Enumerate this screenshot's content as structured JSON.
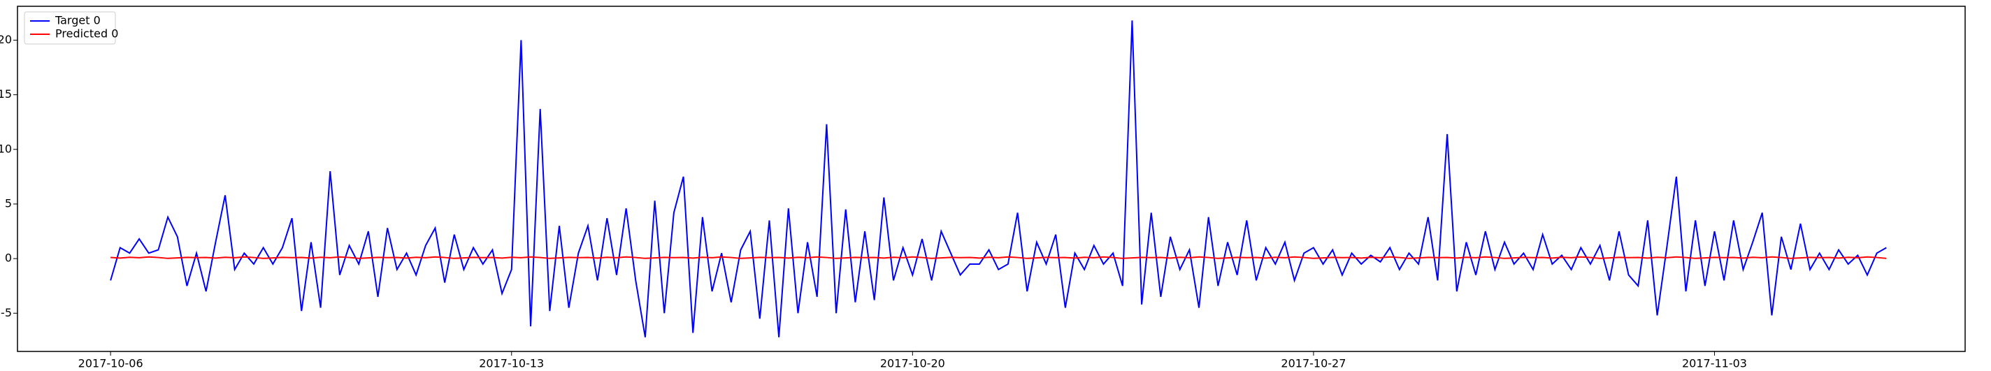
{
  "chart_data": {
    "type": "line",
    "x": [
      0,
      4,
      8,
      12,
      16,
      20,
      24,
      28,
      32,
      36,
      40,
      44,
      48,
      52,
      56,
      60,
      64,
      68,
      72,
      76,
      80,
      84,
      88,
      92,
      96,
      100,
      104,
      108,
      112,
      116,
      120,
      124,
      128,
      132,
      136,
      140,
      144,
      148,
      152,
      156,
      160,
      164,
      168,
      172,
      176,
      180,
      184,
      188,
      192,
      196,
      200,
      204,
      208,
      212,
      216,
      220,
      224,
      228,
      232,
      236,
      240,
      244,
      248,
      252,
      256,
      260,
      264,
      268,
      272,
      276,
      280,
      284,
      288,
      292,
      296,
      300,
      304,
      308,
      312,
      316,
      320,
      324,
      328,
      332,
      336,
      340,
      344,
      348,
      352,
      356,
      360,
      364,
      368,
      372,
      376,
      380,
      384,
      388,
      392,
      396,
      400,
      404,
      408,
      412,
      416,
      420,
      424,
      428,
      432,
      436,
      440,
      444,
      448,
      452,
      456,
      460,
      464,
      468,
      472,
      476,
      480,
      484,
      488,
      492,
      496,
      500,
      504,
      508,
      512,
      516,
      520,
      524,
      528,
      532,
      536,
      540,
      544,
      548,
      552,
      556,
      560,
      564,
      568,
      572,
      576,
      580,
      584,
      588,
      592,
      596,
      600,
      604,
      608,
      612,
      616,
      620,
      624,
      628,
      632,
      636,
      640,
      644,
      648,
      652,
      656,
      660,
      664,
      668,
      672,
      676,
      680,
      684,
      688,
      692,
      696,
      700,
      704,
      708,
      712,
      716,
      720,
      724,
      728,
      732,
      736,
      740,
      744
    ],
    "xlim": [
      -39,
      777
    ],
    "xticks": [
      {
        "value": 0,
        "label": "2017-10-06"
      },
      {
        "value": 168,
        "label": "2017-10-13"
      },
      {
        "value": 336,
        "label": "2017-10-20"
      },
      {
        "value": 504,
        "label": "2017-10-27"
      },
      {
        "value": 672,
        "label": "2017-11-03"
      }
    ],
    "ylim": [
      -8.5,
      23.1
    ],
    "yticks": [
      -5,
      0,
      5,
      10,
      15,
      20
    ],
    "grid": false,
    "legend": "upper left",
    "series": [
      {
        "name": "Target 0",
        "color": "#0000ff",
        "values": [
          -2,
          1,
          0.5,
          1.8,
          0.5,
          0.8,
          3.8,
          2,
          -2.5,
          0.5,
          -3,
          1.5,
          5.8,
          -1,
          0.5,
          -0.5,
          1,
          -0.5,
          1,
          3.7,
          -4.8,
          1.5,
          -4.5,
          8,
          -1.5,
          1.2,
          -0.5,
          2.5,
          -3.5,
          2.8,
          -1,
          0.5,
          -1.5,
          1.2,
          2.8,
          -2.2,
          2.2,
          -1,
          1,
          -0.5,
          0.8,
          -3.2,
          -1,
          20,
          -6.2,
          13.7,
          -4.8,
          3,
          -4.5,
          0.5,
          3,
          -2,
          3.7,
          -1.5,
          4.6,
          -2,
          -7.2,
          5.3,
          -5,
          4.2,
          7.5,
          -6.8,
          3.8,
          -3,
          0.5,
          -4,
          0.8,
          2.5,
          -5.5,
          3.5,
          -7.2,
          4.6,
          -5,
          1.5,
          -3.5,
          12.3,
          -5,
          4.5,
          -4,
          2.5,
          -3.8,
          5.6,
          -2,
          1,
          -1.5,
          1.8,
          -2,
          2.5,
          0.5,
          -1.5,
          -0.5,
          -0.5,
          0.8,
          -1,
          -0.5,
          4.2,
          -3,
          1.5,
          -0.5,
          2.2,
          -4.5,
          0.5,
          -1,
          1.2,
          -0.5,
          0.5,
          -2.5,
          21.8,
          -4.2,
          4.2,
          -3.5,
          2,
          -1,
          0.8,
          -4.5,
          3.8,
          -2.5,
          1.5,
          -1.5,
          3.5,
          -2,
          1,
          -0.5,
          1.5,
          -2,
          0.5,
          1,
          -0.5,
          0.8,
          -1.5,
          0.5,
          -0.5,
          0.3,
          -0.3,
          1,
          -1,
          0.5,
          -0.5,
          3.8,
          -2,
          11.4,
          -3,
          1.5,
          -1.5,
          2.5,
          -1,
          1.5,
          -0.5,
          0.5,
          -1,
          2.2,
          -0.5,
          0.3,
          -1,
          1,
          -0.5,
          1.2,
          -2,
          2.5,
          -1.5,
          -2.5,
          3.5,
          -5.2,
          1,
          7.5,
          -3,
          3.5,
          -2.5,
          2.5,
          -2,
          3.5,
          -1,
          1.5,
          4.2,
          -5.2,
          2,
          -1,
          3.2,
          -1,
          0.5,
          -1,
          0.8,
          -0.5,
          0.3,
          -1.5,
          0.5,
          1
        ]
      },
      {
        "name": "Predicted 0",
        "color": "#ff0000",
        "values": [
          0.1,
          0.05,
          0.12,
          0.08,
          0.15,
          0.1,
          0.02,
          0.06,
          0.11,
          0.09,
          0.1,
          0.05,
          0.12,
          0.08,
          0.15,
          0.1,
          0.02,
          0.06,
          0.11,
          0.09,
          0.1,
          0.05,
          0.12,
          0.08,
          0.15,
          0.1,
          0.02,
          0.06,
          0.11,
          0.09,
          0.1,
          0.05,
          0.12,
          0.08,
          0.15,
          0.1,
          0.02,
          0.06,
          0.11,
          0.09,
          0.1,
          0.05,
          0.12,
          0.08,
          0.15,
          0.1,
          0.02,
          0.06,
          0.11,
          0.09,
          0.1,
          0.05,
          0.12,
          0.08,
          0.15,
          0.1,
          0.02,
          0.06,
          0.11,
          0.09,
          0.1,
          0.05,
          0.12,
          0.08,
          0.15,
          0.1,
          0.02,
          0.06,
          0.11,
          0.09,
          0.1,
          0.05,
          0.12,
          0.08,
          0.15,
          0.1,
          0.02,
          0.06,
          0.11,
          0.09,
          0.1,
          0.05,
          0.12,
          0.08,
          0.15,
          0.1,
          0.02,
          0.06,
          0.11,
          0.09,
          0.1,
          0.05,
          0.12,
          0.08,
          0.15,
          0.1,
          0.02,
          0.06,
          0.11,
          0.09,
          0.1,
          0.05,
          0.12,
          0.08,
          0.15,
          0.1,
          0.02,
          0.06,
          0.11,
          0.09,
          0.1,
          0.05,
          0.12,
          0.08,
          0.15,
          0.1,
          0.02,
          0.06,
          0.11,
          0.09,
          0.1,
          0.05,
          0.12,
          0.08,
          0.15,
          0.1,
          0.02,
          0.06,
          0.11,
          0.09,
          0.1,
          0.05,
          0.12,
          0.08,
          0.15,
          0.1,
          0.02,
          0.06,
          0.11,
          0.09,
          0.1,
          0.05,
          0.12,
          0.08,
          0.15,
          0.1,
          0.02,
          0.06,
          0.11,
          0.09,
          0.1,
          0.05,
          0.12,
          0.08,
          0.15,
          0.1,
          0.02,
          0.06,
          0.11,
          0.09,
          0.1,
          0.05,
          0.12,
          0.08,
          0.15,
          0.1,
          0.02,
          0.06,
          0.11,
          0.09,
          0.1,
          0.05,
          0.12,
          0.08,
          0.15,
          0.1,
          0.02,
          0.06,
          0.11,
          0.09,
          0.1,
          0.05,
          0.12,
          0.08,
          0.15,
          0.1,
          0.02
        ]
      }
    ]
  }
}
